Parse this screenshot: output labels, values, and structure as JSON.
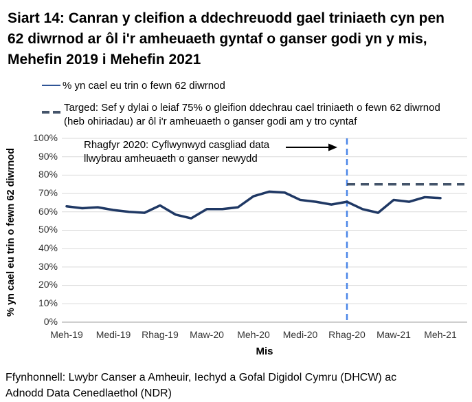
{
  "title": "Siart 14: Canran y cleifion a ddechreuodd gael triniaeth cyn pen 62 diwrnod ar ôl i'r amheuaeth gyntaf o ganser godi yn y mis, Mehefin 2019 i Mehefin 2021",
  "legend": [
    {
      "label": "% yn cael eu trin o fewn 62 diwrnod",
      "style": "solid",
      "color": "#2F5496"
    },
    {
      "label": "Targed: Sef y dylai o leiaf 75% o gleifion ddechrau cael triniaeth o fewn 62 diwrnod (heb ohiriadau) ar ôl i'r amheuaeth o ganser godi am y tro cyntaf",
      "style": "dashed",
      "color": "#44546A"
    }
  ],
  "annotation": {
    "line1": "Rhagfyr 2020: Cyflwynwyd casgliad data",
    "line2": "llwybrau amheuaeth o ganser newydd"
  },
  "chart_data": {
    "type": "line",
    "x": [
      "Meh-19",
      "Gor-19",
      "Aws-19",
      "Medi-19",
      "Hyd-19",
      "Tach-19",
      "Rhag-19",
      "Ion-20",
      "Chwe-20",
      "Maw-20",
      "Ebr-20",
      "Mai-20",
      "Meh-20",
      "Gor-20",
      "Aws-20",
      "Medi-20",
      "Hyd-20",
      "Tach-20",
      "Rhag-20",
      "Ion-21",
      "Chwe-21",
      "Maw-21",
      "Ebr-21",
      "Mai-21",
      "Meh-21"
    ],
    "series": [
      {
        "name": "% yn cael eu trin o fewn 62 diwrnod",
        "color": "#1F3864",
        "values": [
          63,
          62,
          62.5,
          61,
          60,
          59.5,
          63.5,
          58.5,
          56.5,
          61.5,
          61.5,
          62.5,
          68.5,
          71,
          70.5,
          66.5,
          65.5,
          64,
          65.5,
          61.5,
          59.5,
          66.5,
          65.5,
          68,
          67.5
        ]
      },
      {
        "name": "Targed",
        "color": "#44546A",
        "style": "dashed",
        "value": 75,
        "x_start": "Rhag-20",
        "x_end": "Meh-21"
      }
    ],
    "event_line": {
      "x": "Rhag-20",
      "color": "#4A86E8",
      "style": "dashed"
    },
    "xlabel": "Mis",
    "ylabel": "% yn cael eu trin o fewn 62 diwrnod",
    "ylim": [
      0,
      100
    ],
    "ytick_step": 10,
    "ytick_suffix": "%",
    "x_tick_labels": [
      "Meh-19",
      "Medi-19",
      "Rhag-19",
      "Maw-20",
      "Meh-20",
      "Medi-20",
      "Rhag-20",
      "Maw-21",
      "Meh-21"
    ],
    "grid": true,
    "grid_color": "#D9D9D9",
    "axis_color": "#BFBFBF",
    "legend_position": "top"
  },
  "source": {
    "line1": "Ffynhonnell: Lwybr Canser a Amheuir, Iechyd a Gofal Digidol Cymru (DHCW) ac",
    "line2": "Adnodd Data Cenedlaethol (NDR)"
  }
}
